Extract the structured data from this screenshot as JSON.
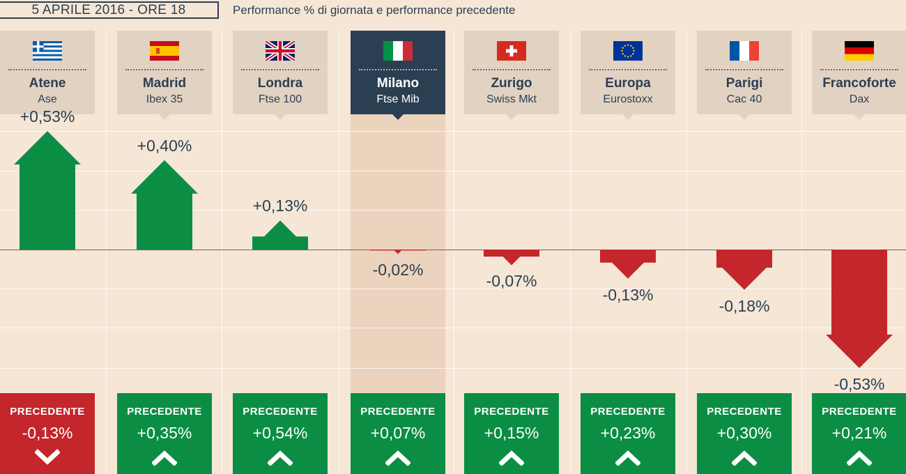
{
  "header": {
    "date": "5 APRILE 2016 - ORE 18",
    "subtitle": "Performance % di giornata e performance precedente"
  },
  "colors": {
    "positive": "#0b8e44",
    "negative": "#c3262b",
    "navy": "#2b3f52",
    "background": "#f5e6d6",
    "header_box": "#e2d2c2",
    "highlight": "#ecd3bd"
  },
  "chart_data": {
    "type": "bar",
    "title": "",
    "xlabel": "",
    "ylabel": "",
    "ylim": [
      -0.6,
      0.6
    ],
    "grid": true,
    "categories": [
      "Atene",
      "Madrid",
      "Londra",
      "Milano",
      "Zurigo",
      "Europa",
      "Parigi",
      "Francoforte"
    ],
    "indices": [
      "Ase",
      "Ibex 35",
      "Ftse 100",
      "Ftse Mib",
      "Swiss Mkt",
      "Eurostoxx",
      "Cac 40",
      "Dax"
    ],
    "flags": [
      "greece-flag",
      "spain-flag",
      "uk-flag",
      "italy-flag",
      "switzerland-flag",
      "eu-flag",
      "france-flag",
      "germany-flag"
    ],
    "highlighted": "Milano",
    "values": [
      0.53,
      0.4,
      0.13,
      -0.02,
      -0.07,
      -0.13,
      -0.18,
      -0.53
    ],
    "value_labels": [
      "+0,53%",
      "+0,40%",
      "+0,13%",
      "-0,02%",
      "-0,07%",
      "-0,13%",
      "-0,18%",
      "-0,53%"
    ],
    "previous": {
      "title": "PRECEDENTE",
      "values": [
        -0.13,
        0.35,
        0.54,
        0.07,
        0.15,
        0.23,
        0.3,
        0.21
      ],
      "labels": [
        "-0,13%",
        "+0,35%",
        "+0,54%",
        "+0,07%",
        "+0,15%",
        "+0,23%",
        "+0,30%",
        "+0,21%"
      ]
    }
  }
}
